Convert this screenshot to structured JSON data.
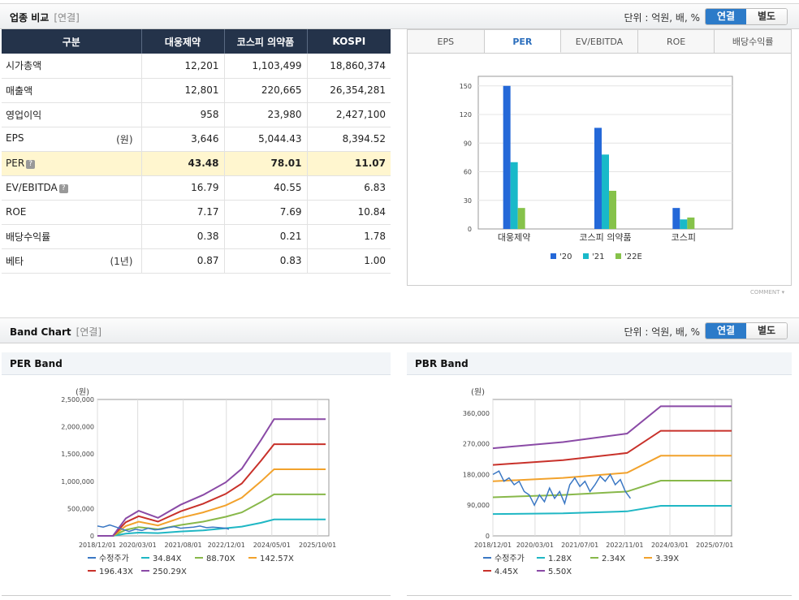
{
  "section1": {
    "title": "업종 비교",
    "sub": "[연결]",
    "unit": "단위 : 억원, 배, %",
    "toggle_on": "연결",
    "toggle_off": "별도"
  },
  "table": {
    "headers": [
      "구분",
      "대웅제약",
      "코스피 의약품",
      "KOSPI"
    ],
    "rows": [
      {
        "label": "시가총액",
        "unit": "",
        "v": [
          "12,201",
          "1,103,499",
          "18,860,374"
        ]
      },
      {
        "label": "매출액",
        "unit": "",
        "v": [
          "12,801",
          "220,665",
          "26,354,281"
        ]
      },
      {
        "label": "영업이익",
        "unit": "",
        "v": [
          "958",
          "23,980",
          "2,427,100"
        ]
      },
      {
        "label": "EPS",
        "unit": "(원)",
        "v": [
          "3,646",
          "5,044.43",
          "8,394.52"
        ]
      },
      {
        "label": "PER",
        "unit": "",
        "v": [
          "43.48",
          "78.01",
          "11.07"
        ]
      },
      {
        "label": "EV/EBITDA",
        "unit": "",
        "v": [
          "16.79",
          "40.55",
          "6.83"
        ]
      },
      {
        "label": "ROE",
        "unit": "",
        "v": [
          "7.17",
          "7.69",
          "10.84"
        ]
      },
      {
        "label": "배당수익률",
        "unit": "",
        "v": [
          "0.38",
          "0.21",
          "1.78"
        ]
      },
      {
        "label": "베타",
        "unit": "(1년)",
        "v": [
          "0.87",
          "0.83",
          "1.00"
        ]
      }
    ]
  },
  "tabs": [
    "EPS",
    "PER",
    "EV/EBITDA",
    "ROE",
    "배당수익률"
  ],
  "comment_label": "COMMENT",
  "section2": {
    "title": "Band Chart",
    "sub": "[연결]",
    "unit": "단위 : 억원, 배, %",
    "toggle_on": "연결",
    "toggle_off": "별도"
  },
  "chart_data": [
    {
      "type": "bar",
      "title": "PER",
      "categories": [
        "대웅제약",
        "코스피 의약품",
        "코스피"
      ],
      "series": [
        {
          "name": "'20",
          "color": "#2468d8",
          "values": [
            150,
            106,
            22
          ]
        },
        {
          "name": "'21",
          "color": "#19b9c9",
          "values": [
            70,
            78,
            10
          ]
        },
        {
          "name": "'22E",
          "color": "#86c24a",
          "values": [
            22,
            40,
            12
          ]
        }
      ],
      "ylim": [
        0,
        160
      ],
      "yticks": [
        0,
        30,
        60,
        90,
        120,
        150
      ]
    },
    {
      "type": "line",
      "title": "PER Band",
      "ylabel": "(원)",
      "ylim": [
        0,
        2500000
      ],
      "yticks": [
        0,
        500000,
        1000000,
        1500000,
        2000000,
        2500000
      ],
      "ytick_labels": [
        "0",
        "500,000",
        "1,000,000",
        "1,500,000",
        "2,000,000",
        "2,500,000"
      ],
      "xticks": [
        2018.92,
        2020.17,
        2021.58,
        2022.92,
        2024.33,
        2025.75
      ],
      "xtick_labels": [
        "2018/12/01",
        "2020/03/01",
        "2021/08/01",
        "2022/12/01",
        "2024/05/01",
        "2025/10/01"
      ],
      "xlim": [
        2018.92,
        2026.1
      ],
      "series": [
        {
          "name": "수정주가",
          "color": "#3b78c4",
          "x": [
            2018.92,
            2019.1,
            2019.3,
            2019.5,
            2019.7,
            2019.9,
            2020.1,
            2020.3,
            2020.5,
            2020.7,
            2020.9,
            2021.1,
            2021.3,
            2021.5,
            2021.7,
            2021.9,
            2022.1,
            2022.3,
            2022.5,
            2022.7,
            2022.9,
            2023.0
          ],
          "y": [
            180000,
            160000,
            200000,
            160000,
            120000,
            80000,
            120000,
            100000,
            140000,
            110000,
            120000,
            150000,
            170000,
            140000,
            150000,
            160000,
            180000,
            150000,
            160000,
            150000,
            140000,
            120000
          ]
        },
        {
          "name": "34.84X",
          "color": "#1fb7c4",
          "x": [
            2018.92,
            2019.4,
            2019.8,
            2020.2,
            2020.8,
            2021.5,
            2022.2,
            2022.9,
            2023.4,
            2024.0,
            2024.4,
            2026.0
          ],
          "y": [
            0,
            0,
            40000,
            60000,
            50000,
            80000,
            100000,
            140000,
            170000,
            240000,
            300000,
            300000
          ]
        },
        {
          "name": "88.70X",
          "color": "#88b84a",
          "x": [
            2018.92,
            2019.4,
            2019.8,
            2020.2,
            2020.8,
            2021.5,
            2022.2,
            2022.9,
            2023.4,
            2024.0,
            2024.4,
            2026.0
          ],
          "y": [
            0,
            0,
            110000,
            160000,
            120000,
            200000,
            260000,
            350000,
            430000,
            620000,
            760000,
            760000
          ]
        },
        {
          "name": "142.57X",
          "color": "#f2a22c",
          "x": [
            2018.92,
            2019.4,
            2019.8,
            2020.2,
            2020.8,
            2021.5,
            2022.2,
            2022.9,
            2023.4,
            2024.0,
            2024.4,
            2026.0
          ],
          "y": [
            0,
            0,
            180000,
            260000,
            190000,
            330000,
            430000,
            560000,
            700000,
            1000000,
            1220000,
            1220000
          ]
        },
        {
          "name": "196.43X",
          "color": "#c8312a",
          "x": [
            2018.92,
            2019.4,
            2019.8,
            2020.2,
            2020.8,
            2021.5,
            2022.2,
            2022.9,
            2023.4,
            2024.0,
            2024.4,
            2026.0
          ],
          "y": [
            0,
            0,
            250000,
            360000,
            260000,
            450000,
            590000,
            770000,
            960000,
            1380000,
            1680000,
            1680000
          ]
        },
        {
          "name": "250.29X",
          "color": "#8a4aa6",
          "x": [
            2018.92,
            2019.4,
            2019.8,
            2020.2,
            2020.8,
            2021.5,
            2022.2,
            2022.9,
            2023.4,
            2024.0,
            2024.4,
            2026.0
          ],
          "y": [
            0,
            0,
            320000,
            460000,
            330000,
            570000,
            750000,
            980000,
            1230000,
            1760000,
            2140000,
            2140000
          ]
        }
      ]
    },
    {
      "type": "line",
      "title": "PBR Band",
      "ylabel": "(원)",
      "ylim": [
        0,
        400000
      ],
      "yticks": [
        0,
        90000,
        180000,
        270000,
        360000
      ],
      "ytick_labels": [
        "0",
        "90,000",
        "180,000",
        "270,000",
        "360,000"
      ],
      "xticks": [
        2018.92,
        2020.17,
        2021.5,
        2022.83,
        2024.17,
        2025.5
      ],
      "xtick_labels": [
        "2018/12/01",
        "2020/03/01",
        "2021/07/01",
        "2022/11/01",
        "2024/03/01",
        "2025/07/01"
      ],
      "xlim": [
        2018.92,
        2026.0
      ],
      "series": [
        {
          "name": "수정주가",
          "color": "#3b78c4",
          "x": [
            2018.92,
            2019.1,
            2019.25,
            2019.4,
            2019.55,
            2019.7,
            2019.85,
            2020.0,
            2020.15,
            2020.3,
            2020.45,
            2020.6,
            2020.75,
            2020.9,
            2021.05,
            2021.2,
            2021.35,
            2021.5,
            2021.65,
            2021.8,
            2021.95,
            2022.1,
            2022.25,
            2022.4,
            2022.55,
            2022.7,
            2022.85,
            2023.0
          ],
          "y": [
            180000,
            190000,
            160000,
            170000,
            150000,
            160000,
            130000,
            120000,
            90000,
            120000,
            100000,
            140000,
            110000,
            130000,
            95000,
            150000,
            170000,
            145000,
            160000,
            130000,
            150000,
            175000,
            160000,
            180000,
            150000,
            165000,
            130000,
            110000
          ]
        },
        {
          "name": "1.28X",
          "color": "#1fb7c4",
          "x": [
            2018.92,
            2021.0,
            2022.9,
            2023.9,
            2026.0
          ],
          "y": [
            64000,
            66000,
            72000,
            88000,
            88000
          ]
        },
        {
          "name": "2.34X",
          "color": "#88b84a",
          "x": [
            2018.92,
            2021.0,
            2022.9,
            2023.9,
            2026.0
          ],
          "y": [
            113000,
            120000,
            130000,
            162000,
            162000
          ]
        },
        {
          "name": "3.39X",
          "color": "#f2a22c",
          "x": [
            2018.92,
            2021.0,
            2022.9,
            2023.9,
            2026.0
          ],
          "y": [
            160000,
            170000,
            185000,
            235000,
            235000
          ]
        },
        {
          "name": "4.45X",
          "color": "#c8312a",
          "x": [
            2018.92,
            2021.0,
            2022.9,
            2023.9,
            2026.0
          ],
          "y": [
            208000,
            222000,
            243000,
            308000,
            308000
          ]
        },
        {
          "name": "5.50X",
          "color": "#8a4aa6",
          "x": [
            2018.92,
            2021.0,
            2022.9,
            2023.9,
            2026.0
          ],
          "y": [
            257000,
            275000,
            300000,
            380000,
            380000
          ]
        }
      ]
    }
  ]
}
